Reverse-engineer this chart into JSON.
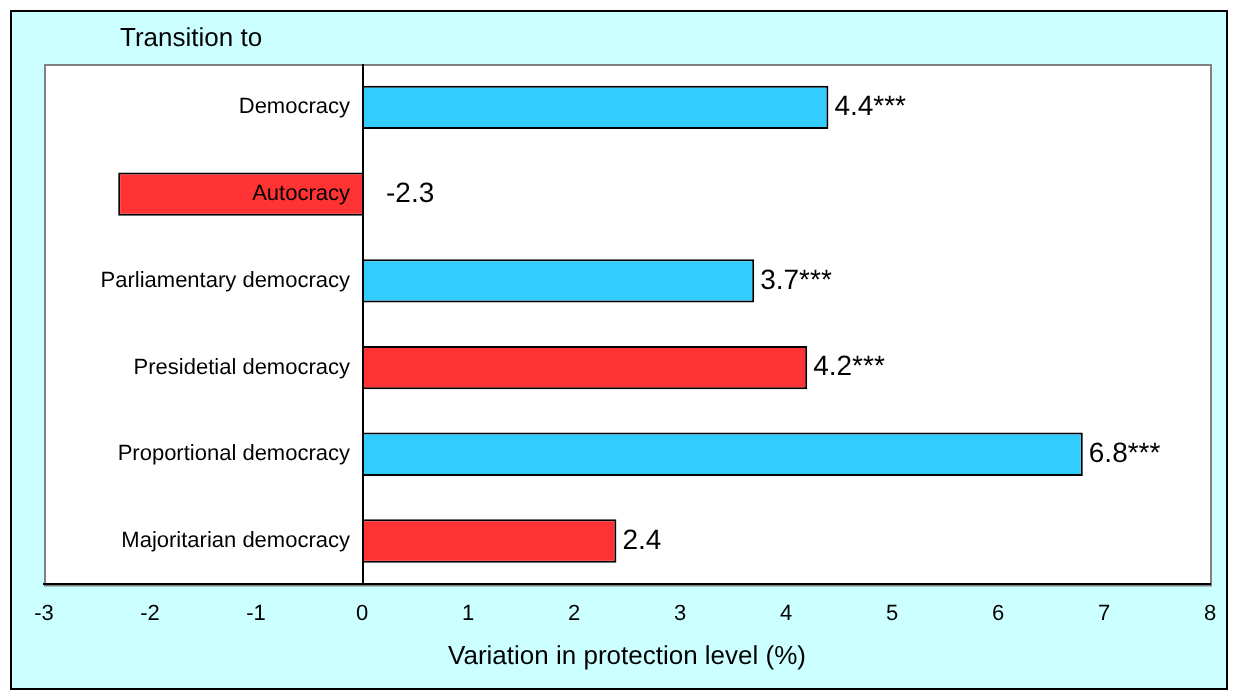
{
  "chart_data": {
    "type": "bar",
    "orientation": "horizontal",
    "ylabel": "Transition to",
    "xlabel": "Variation in protection level (%)",
    "categories": [
      "Democracy",
      "Autocracy",
      "Parliamentary democracy",
      "Presidetial democracy",
      "Proportional democracy",
      "Majoritarian democracy"
    ],
    "values": [
      4.4,
      -2.3,
      3.7,
      4.2,
      6.8,
      2.4
    ],
    "colors": [
      "#33ccff",
      "#ff3333",
      "#33ccff",
      "#ff3333",
      "#33ccff",
      "#ff3333"
    ],
    "value_labels": [
      "4.4***",
      "-2.3",
      "3.7***",
      "4.2***",
      "6.8***",
      "2.4"
    ],
    "xlim": [
      -3,
      8
    ],
    "xticks": [
      -3,
      -2,
      -1,
      0,
      1,
      2,
      3,
      4,
      5,
      6,
      7,
      8
    ],
    "grid": false,
    "legend": false
  }
}
